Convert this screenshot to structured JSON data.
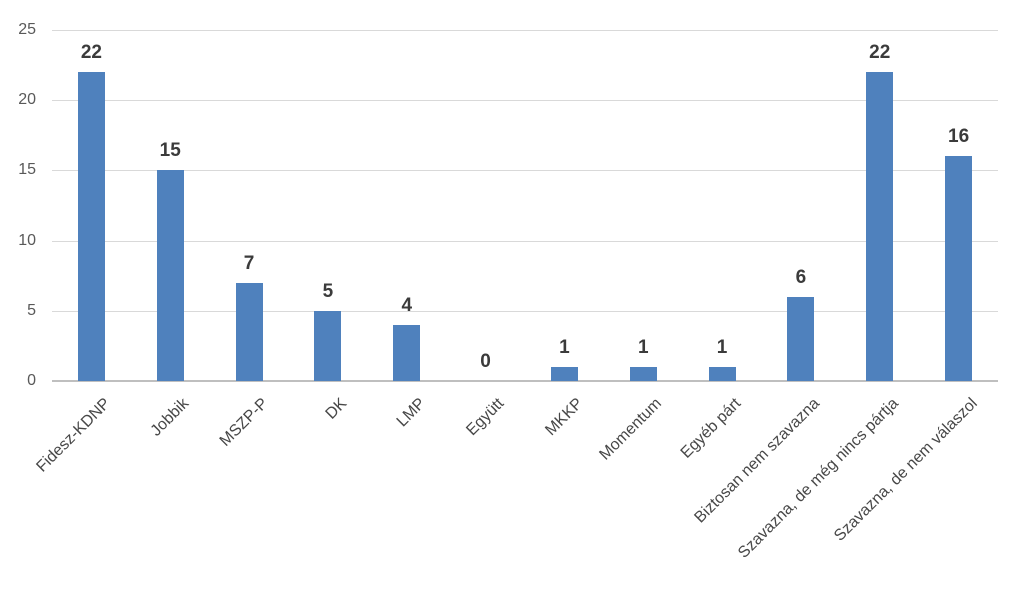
{
  "chart_data": {
    "type": "bar",
    "categories": [
      "Fidesz-KDNP",
      "Jobbik",
      "MSZP-P",
      "DK",
      "LMP",
      "Együtt",
      "MKKP",
      "Momentum",
      "Egyéb párt",
      "Biztosan nem szavazna",
      "Szavazna, de még nincs pártja",
      "Szavazna, de nem válaszol"
    ],
    "values": [
      22,
      15,
      7,
      5,
      4,
      0,
      1,
      1,
      1,
      6,
      22,
      16
    ],
    "data_labels": [
      "22",
      "15",
      "7",
      "5",
      "4",
      "0",
      "1",
      "1",
      "1",
      "6",
      "22",
      "16"
    ],
    "title": "",
    "xlabel": "",
    "ylabel": "",
    "ylim": [
      0,
      25
    ],
    "yticks": [
      0,
      5,
      10,
      15,
      20,
      25
    ],
    "ytick_labels": [
      "0",
      "5",
      "10",
      "15",
      "20",
      "25"
    ],
    "grid": true,
    "legend": false,
    "colors": {
      "bar": "#4f81bd",
      "gridline": "#d9d9d9",
      "axis_line": "#bfbfbf",
      "axis_tick_text": "#595959",
      "category_text": "#474747",
      "data_label_text": "#3b3b3b",
      "background": "#ffffff"
    }
  }
}
